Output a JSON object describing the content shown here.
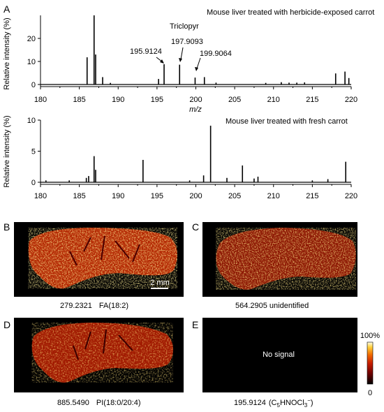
{
  "panel_letters": {
    "A": "A",
    "B": "B",
    "C": "C",
    "D": "D",
    "E": "E"
  },
  "chart_data": [
    {
      "type": "bar",
      "id": "top-spectrum",
      "title": "Mouse liver treated with herbicide-exposed carrot",
      "compound_label": "Triclopyr",
      "xlabel": "m/z",
      "ylabel": "Relative intensity (%)",
      "xlim": [
        180,
        220
      ],
      "ylim": [
        0,
        30
      ],
      "xticks": [
        "180",
        "185",
        "190",
        "195",
        "200",
        "205",
        "210",
        "215",
        "220"
      ],
      "yticks": [
        "0",
        "10",
        "20"
      ],
      "x": [
        186.0,
        186.9,
        187.1,
        188.0,
        189.0,
        195.2,
        195.9124,
        197.9093,
        199.9064,
        201.1,
        202.6,
        209.0,
        211.0,
        212.0,
        213.0,
        214.0,
        218.0,
        219.2,
        219.7
      ],
      "values": [
        11.8,
        30.0,
        13.0,
        3.2,
        0.7,
        2.4,
        8.8,
        8.6,
        3.0,
        3.2,
        0.8,
        0.7,
        1.0,
        0.8,
        0.8,
        0.9,
        4.8,
        5.6,
        2.8
      ],
      "annotations": [
        {
          "label": "195.9124",
          "x": 195.9124
        },
        {
          "label": "197.9093",
          "x": 197.9093
        },
        {
          "label": "199.9064",
          "x": 199.9064
        }
      ]
    },
    {
      "type": "bar",
      "id": "bottom-spectrum",
      "title": "Mouse liver treated with fresh carrot",
      "xlabel": "m/z",
      "ylabel": "Relative intensity (%)",
      "xlim": [
        180,
        220
      ],
      "ylim": [
        0,
        10
      ],
      "xticks": [
        "180",
        "185",
        "190",
        "195",
        "200",
        "205",
        "210",
        "215",
        "220"
      ],
      "yticks": [
        "0",
        "5",
        "10"
      ],
      "x": [
        180.7,
        183.7,
        185.9,
        186.2,
        186.9,
        187.1,
        193.2,
        199.2,
        201.0,
        201.9,
        204.0,
        206.0,
        207.5,
        208.0,
        215.0,
        217.0,
        219.3
      ],
      "values": [
        0.3,
        0.3,
        0.7,
        1.0,
        4.2,
        2.0,
        3.6,
        0.3,
        1.1,
        9.1,
        0.7,
        2.7,
        0.6,
        0.9,
        0.3,
        0.5,
        3.3
      ]
    }
  ],
  "images": {
    "B": {
      "caption_mz": "279.2321",
      "caption_id": "FA(18:2)",
      "scale_bar": "2 mm"
    },
    "C": {
      "caption": "564.2905 unidentified"
    },
    "D": {
      "caption_mz": "885.5490",
      "caption_id": "PI(18:0/20:4)"
    },
    "E": {
      "caption_mz": "195.9124",
      "formula_main": "(C",
      "formula_sub": "5",
      "formula_mid": "HNOCl",
      "formula_sub2": "3",
      "formula_sup": "−",
      "formula_end": ")",
      "no_signal": "No signal"
    }
  },
  "colorbar": {
    "max": "100%",
    "min": "0",
    "colors": [
      "#000000",
      "#6e0000",
      "#c81e00",
      "#f26a00",
      "#ffcf3a",
      "#ffffe8"
    ]
  }
}
